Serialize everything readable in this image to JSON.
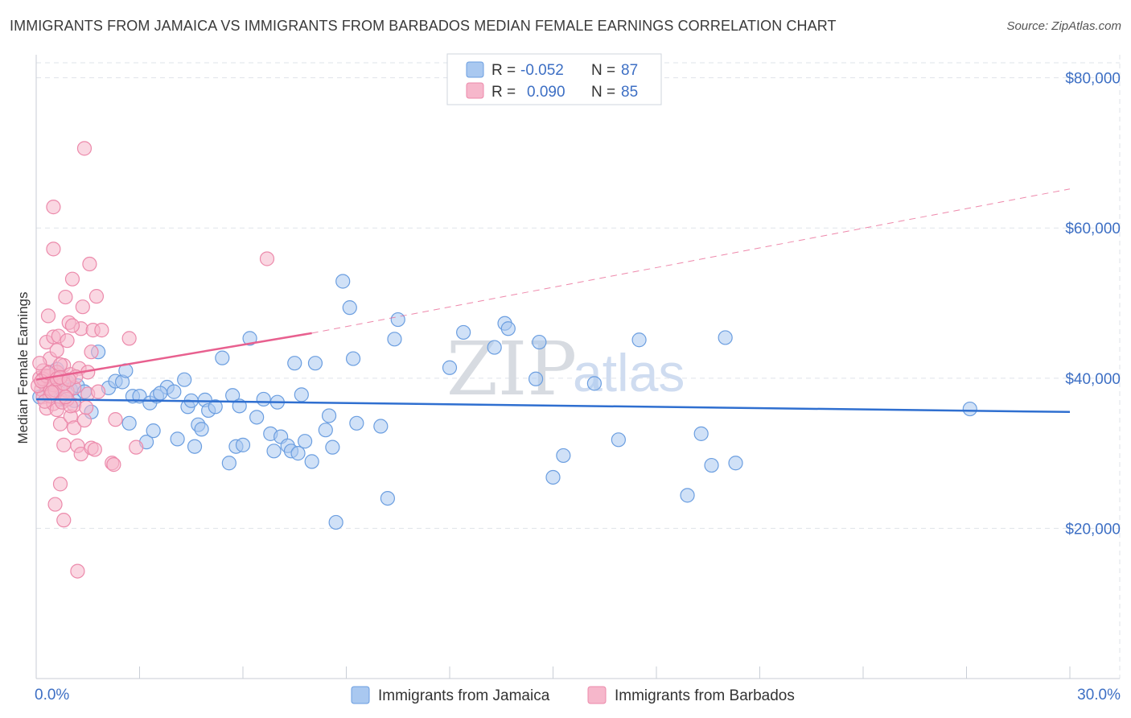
{
  "title": "IMMIGRANTS FROM JAMAICA VS IMMIGRANTS FROM BARBADOS MEDIAN FEMALE EARNINGS CORRELATION CHART",
  "source": "Source: ZipAtlas.com",
  "watermark": {
    "zip": "ZIP",
    "atlas": "atlas"
  },
  "colors": {
    "jamaica_fill": "#a9c8f0",
    "jamaica_stroke": "#6b9ee0",
    "jamaica_line": "#2f6fd0",
    "barbados_fill": "#f6b7cb",
    "barbados_stroke": "#ec8aab",
    "barbados_line": "#e8608f",
    "grid": "#dfe3ea",
    "axis_text": "#3d6fc4"
  },
  "legend": {
    "rows": [
      {
        "r_label": "R =",
        "r_value": "-0.052",
        "n_label": "N =",
        "n_value": "87"
      },
      {
        "r_label": "R =",
        "r_value": "0.090",
        "n_label": "N =",
        "n_value": "85"
      }
    ]
  },
  "chart_data": {
    "type": "scatter",
    "title": "IMMIGRANTS FROM JAMAICA VS IMMIGRANTS FROM BARBADOS MEDIAN FEMALE EARNINGS CORRELATION CHART",
    "xlabel": "",
    "ylabel": "Median Female Earnings",
    "xlim": [
      0,
      30
    ],
    "ylim": [
      0,
      82000
    ],
    "x_tick_labels": [
      "0.0%",
      "30.0%"
    ],
    "y_ticks": [
      20000,
      40000,
      60000,
      80000
    ],
    "y_tick_labels": [
      "$20,000",
      "$40,000",
      "$60,000",
      "$80,000"
    ],
    "series": [
      {
        "name": "Immigrants from Jamaica",
        "r": -0.052,
        "n": 87,
        "trend": {
          "x": [
            0,
            30
          ],
          "y": [
            37200,
            35500
          ]
        },
        "points": [
          [
            0.1,
            37500
          ],
          [
            0.3,
            39000
          ],
          [
            0.5,
            38000
          ],
          [
            0.7,
            37200
          ],
          [
            0.9,
            39500
          ],
          [
            1.0,
            38500
          ],
          [
            1.1,
            37000
          ],
          [
            1.2,
            39000
          ],
          [
            1.4,
            38200
          ],
          [
            1.6,
            35500
          ],
          [
            1.8,
            43500
          ],
          [
            2.1,
            38700
          ],
          [
            2.3,
            39600
          ],
          [
            2.5,
            39500
          ],
          [
            2.6,
            41000
          ],
          [
            2.7,
            34000
          ],
          [
            2.8,
            37600
          ],
          [
            3.0,
            37600
          ],
          [
            3.2,
            31500
          ],
          [
            3.3,
            36700
          ],
          [
            3.4,
            33000
          ],
          [
            3.5,
            37600
          ],
          [
            3.8,
            38800
          ],
          [
            4.0,
            38200
          ],
          [
            4.1,
            31900
          ],
          [
            4.3,
            39800
          ],
          [
            4.4,
            36200
          ],
          [
            4.5,
            37000
          ],
          [
            4.6,
            30900
          ],
          [
            4.7,
            33800
          ],
          [
            4.8,
            33200
          ],
          [
            4.9,
            37100
          ],
          [
            5.0,
            35700
          ],
          [
            5.2,
            36200
          ],
          [
            5.4,
            42700
          ],
          [
            5.6,
            28700
          ],
          [
            5.7,
            37700
          ],
          [
            5.8,
            30900
          ],
          [
            5.9,
            36300
          ],
          [
            6.0,
            31100
          ],
          [
            6.2,
            45300
          ],
          [
            6.4,
            34800
          ],
          [
            6.6,
            37200
          ],
          [
            6.8,
            32600
          ],
          [
            6.9,
            30300
          ],
          [
            7.0,
            36800
          ],
          [
            7.1,
            32200
          ],
          [
            7.3,
            31000
          ],
          [
            7.4,
            30300
          ],
          [
            7.5,
            42000
          ],
          [
            7.6,
            30000
          ],
          [
            7.7,
            37800
          ],
          [
            7.8,
            31600
          ],
          [
            8.0,
            28900
          ],
          [
            8.1,
            42000
          ],
          [
            8.4,
            33100
          ],
          [
            8.5,
            35000
          ],
          [
            8.6,
            30800
          ],
          [
            8.7,
            20800
          ],
          [
            8.9,
            52900
          ],
          [
            9.1,
            49400
          ],
          [
            9.2,
            42600
          ],
          [
            9.3,
            34000
          ],
          [
            10.0,
            33600
          ],
          [
            10.2,
            24000
          ],
          [
            10.4,
            45200
          ],
          [
            10.5,
            47800
          ],
          [
            12.0,
            41400
          ],
          [
            12.4,
            46100
          ],
          [
            13.3,
            44100
          ],
          [
            13.6,
            47300
          ],
          [
            13.7,
            46600
          ],
          [
            14.5,
            39900
          ],
          [
            14.6,
            44800
          ],
          [
            15.0,
            26800
          ],
          [
            15.3,
            29700
          ],
          [
            16.2,
            39300
          ],
          [
            16.9,
            31800
          ],
          [
            17.5,
            45100
          ],
          [
            18.9,
            24400
          ],
          [
            19.3,
            32600
          ],
          [
            19.6,
            28400
          ],
          [
            20.0,
            45400
          ],
          [
            20.3,
            28700
          ],
          [
            27.1,
            35900
          ],
          [
            0.6,
            41200
          ],
          [
            3.6,
            38000
          ]
        ]
      },
      {
        "name": "Immigrants from Barbados",
        "r": 0.09,
        "n": 85,
        "trend": {
          "x": [
            0,
            8
          ],
          "y": [
            39800,
            46000
          ]
        },
        "trend_extension": {
          "x": [
            8,
            30
          ],
          "y": [
            46000,
            65200
          ]
        },
        "points": [
          [
            0.1,
            40000
          ],
          [
            0.15,
            38500
          ],
          [
            0.2,
            37500
          ],
          [
            0.2,
            41000
          ],
          [
            0.25,
            39200
          ],
          [
            0.3,
            36000
          ],
          [
            0.3,
            44800
          ],
          [
            0.35,
            48300
          ],
          [
            0.35,
            40200
          ],
          [
            0.4,
            38700
          ],
          [
            0.4,
            42600
          ],
          [
            0.45,
            39600
          ],
          [
            0.5,
            36600
          ],
          [
            0.5,
            45500
          ],
          [
            0.5,
            57200
          ],
          [
            0.5,
            62800
          ],
          [
            0.55,
            23200
          ],
          [
            0.6,
            35800
          ],
          [
            0.6,
            40300
          ],
          [
            0.6,
            43700
          ],
          [
            0.65,
            45600
          ],
          [
            0.7,
            25900
          ],
          [
            0.7,
            33900
          ],
          [
            0.7,
            39000
          ],
          [
            0.75,
            36800
          ],
          [
            0.8,
            21100
          ],
          [
            0.8,
            31100
          ],
          [
            0.8,
            41700
          ],
          [
            0.85,
            50800
          ],
          [
            0.9,
            45000
          ],
          [
            0.9,
            38300
          ],
          [
            0.95,
            47400
          ],
          [
            1.0,
            40500
          ],
          [
            1.0,
            34900
          ],
          [
            1.05,
            53200
          ],
          [
            1.1,
            33400
          ],
          [
            1.1,
            36400
          ],
          [
            1.1,
            38700
          ],
          [
            1.2,
            31000
          ],
          [
            1.2,
            14300
          ],
          [
            1.25,
            41300
          ],
          [
            1.3,
            29900
          ],
          [
            1.3,
            46600
          ],
          [
            1.35,
            49500
          ],
          [
            1.4,
            70600
          ],
          [
            1.4,
            34400
          ],
          [
            1.45,
            36100
          ],
          [
            1.5,
            37900
          ],
          [
            1.5,
            40800
          ],
          [
            1.55,
            55200
          ],
          [
            1.6,
            43500
          ],
          [
            1.6,
            30700
          ],
          [
            1.65,
            46400
          ],
          [
            1.7,
            30500
          ],
          [
            1.75,
            50900
          ],
          [
            1.8,
            38200
          ],
          [
            1.9,
            46400
          ],
          [
            2.2,
            28700
          ],
          [
            2.25,
            28500
          ],
          [
            2.3,
            34500
          ],
          [
            2.7,
            45300
          ],
          [
            2.9,
            30800
          ],
          [
            6.7,
            55900
          ],
          [
            0.05,
            39000
          ],
          [
            0.1,
            42000
          ],
          [
            0.2,
            39900
          ],
          [
            0.3,
            40300
          ],
          [
            0.4,
            37600
          ],
          [
            0.5,
            39100
          ],
          [
            0.55,
            38400
          ],
          [
            0.6,
            40800
          ],
          [
            0.7,
            41800
          ],
          [
            0.8,
            39300
          ],
          [
            0.9,
            37200
          ],
          [
            1.0,
            36300
          ],
          [
            1.05,
            47000
          ],
          [
            1.15,
            40200
          ],
          [
            0.25,
            36900
          ],
          [
            0.15,
            39600
          ],
          [
            0.35,
            40700
          ],
          [
            0.45,
            38100
          ],
          [
            0.6,
            39900
          ],
          [
            0.7,
            40100
          ],
          [
            0.85,
            37500
          ],
          [
            0.95,
            39800
          ]
        ]
      }
    ]
  },
  "bottom_legend": [
    {
      "label": "Immigrants from Jamaica"
    },
    {
      "label": "Immigrants from Barbados"
    }
  ]
}
